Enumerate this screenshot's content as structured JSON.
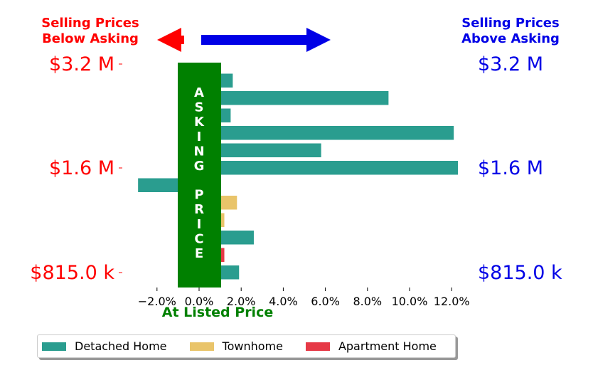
{
  "chart_data": {
    "type": "bar",
    "orientation": "horizontal",
    "annotations": {
      "below_asking": "Selling Prices\nBelow Asking",
      "above_asking": "Selling Prices\nAbove Asking",
      "asking_price_band": "ASKING PRICE",
      "xlabel": "At Listed Price"
    },
    "xlim": [
      -3.0,
      12.8
    ],
    "xticks": [
      -2,
      0,
      2,
      4,
      6,
      8,
      10,
      12
    ],
    "xtick_labels": [
      "−2.0%",
      "0.0%",
      "2.0%",
      "4.0%",
      "6.0%",
      "8.0%",
      "10.0%",
      "12.0%"
    ],
    "ytick_labels_left": [
      "$3.2 M",
      "$1.6 M",
      "$815.0 k"
    ],
    "ytick_labels_right": [
      "$3.2 M",
      "$1.6 M",
      "$815.0 k"
    ],
    "legend": {
      "placement": "bottom",
      "entries": [
        "Detached Home",
        "Townhome",
        "Apartment Home"
      ]
    },
    "colors": {
      "Detached Home": "#2a9d8f",
      "Townhome": "#e9c46a",
      "Apartment Home": "#e63946",
      "band": "#008000",
      "left": "#ff0000",
      "right": "#0000e6"
    },
    "bars": [
      {
        "type": "Detached Home",
        "value": 1.6
      },
      {
        "type": "Detached Home",
        "value": 9.0
      },
      {
        "type": "Detached Home",
        "value": 1.5
      },
      {
        "type": "Detached Home",
        "value": 12.1
      },
      {
        "type": "Detached Home",
        "value": 5.8
      },
      {
        "type": "Detached Home",
        "value": 12.3
      },
      {
        "type": "Detached Home",
        "value": -2.9
      },
      {
        "type": "Townhome",
        "value": 1.8
      },
      {
        "type": "Townhome",
        "value": 1.2
      },
      {
        "type": "Detached Home",
        "value": 2.6
      },
      {
        "type": "Apartment Home",
        "value": 1.2
      },
      {
        "type": "Detached Home",
        "value": 1.9
      }
    ]
  }
}
